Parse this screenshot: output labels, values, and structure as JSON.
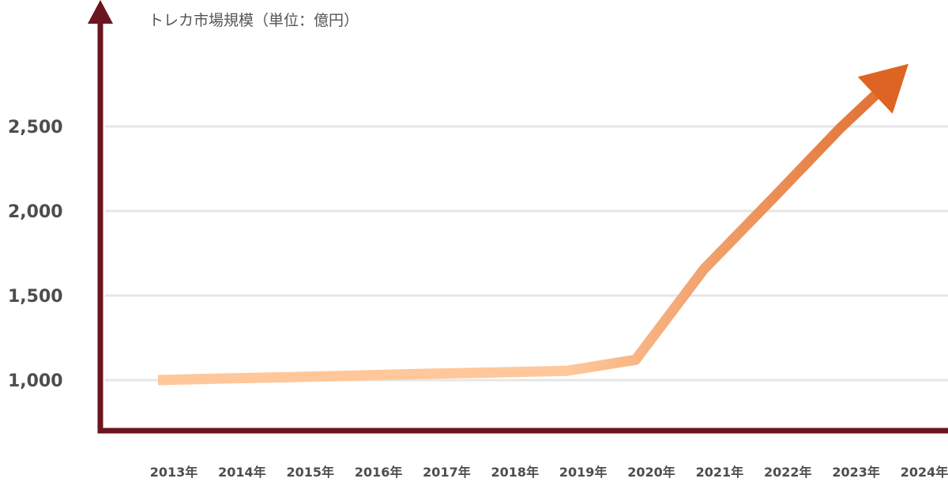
{
  "chart_data": {
    "type": "line",
    "title": "トレカ市場規模（単位：億円）",
    "xlabel": "",
    "ylabel": "",
    "categories": [
      "2013年",
      "2014年",
      "2015年",
      "2016年",
      "2017年",
      "2018年",
      "2019年",
      "2020年",
      "2021年",
      "2022年",
      "2023年",
      "2024年"
    ],
    "values": [
      1000,
      1010,
      1018,
      1028,
      1038,
      1046,
      1055,
      1120,
      1655,
      2070,
      2490,
      2870
    ],
    "yticks": [
      1000,
      1500,
      2000,
      2500
    ],
    "ytick_labels": [
      "1,000",
      "1,500",
      "2,000",
      "2,500"
    ],
    "ylim": [
      870,
      2970
    ],
    "grid": true,
    "trend_arrow": true,
    "colors": {
      "axis": "#6b1520",
      "grid": "#e6e6e6",
      "line_start": "#ffc79a",
      "line_end": "#de6a2a",
      "arrowhead": "#de6424"
    }
  }
}
